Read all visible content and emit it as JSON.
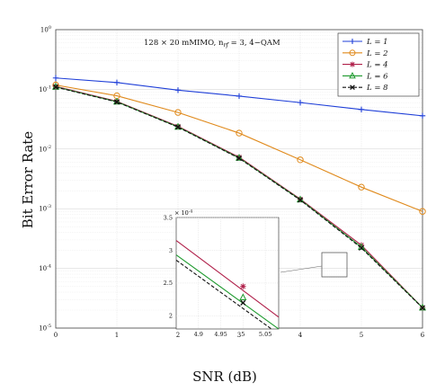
{
  "chart_data": {
    "type": "line",
    "xlabel": "SNR (dB)",
    "ylabel": "Bit Error Rate",
    "annotation": "128 × 20 mMIMO, n",
    "annotation_sub": "rf",
    "annotation_tail": " = 3, 4−QAM",
    "x": [
      0,
      1,
      2,
      3,
      4,
      5,
      6
    ],
    "xlim": [
      0,
      6
    ],
    "ylim": [
      1e-05,
      1
    ],
    "yscale": "log",
    "grid": true,
    "legend_position": "top-right",
    "xticks": [
      "0",
      "1",
      "2",
      "3",
      "4",
      "5",
      "6"
    ],
    "yticks": [
      {
        "base": "10",
        "exp": "0"
      },
      {
        "base": "10",
        "exp": "-1"
      },
      {
        "base": "10",
        "exp": "-2"
      },
      {
        "base": "10",
        "exp": "-3"
      },
      {
        "base": "10",
        "exp": "-4"
      },
      {
        "base": "10",
        "exp": "-5"
      }
    ],
    "series": [
      {
        "name": "L = 1",
        "color": "#1f3fd8",
        "marker": "plus",
        "dash": "",
        "values": [
          0.155,
          0.13,
          0.097,
          0.077,
          0.06,
          0.046,
          0.036
        ]
      },
      {
        "name": "L = 2",
        "color": "#e08a1c",
        "marker": "circle",
        "dash": "",
        "values": [
          0.118,
          0.078,
          0.041,
          0.0185,
          0.0066,
          0.0023,
          0.0009
        ]
      },
      {
        "name": "L = 4",
        "color": "#b0204a",
        "marker": "star",
        "dash": "",
        "values": [
          0.112,
          0.063,
          0.024,
          0.0073,
          0.00145,
          0.000245,
          2.2e-05
        ]
      },
      {
        "name": "L = 6",
        "color": "#1e9a2e",
        "marker": "triangle",
        "dash": "",
        "values": [
          0.11,
          0.062,
          0.0235,
          0.0071,
          0.00142,
          0.000228,
          2.2e-05
        ]
      },
      {
        "name": "L = 8",
        "color": "#111111",
        "marker": "x",
        "dash": "4,2",
        "values": [
          0.109,
          0.0615,
          0.0233,
          0.007,
          0.0014,
          0.00022,
          2.18e-05
        ]
      }
    ],
    "inset": {
      "xlim": [
        4.85,
        5.08
      ],
      "ylim": [
        1.8,
        3.5
      ],
      "exponent": "× 10",
      "exponent_power": "-4",
      "xticks": [
        "4.9",
        "4.95",
        "5",
        "5.05"
      ],
      "yticks": [
        "2",
        "2.5",
        "3",
        "3.5"
      ],
      "series": [
        {
          "name": "L = 4",
          "color": "#b0204a",
          "dash": "",
          "start": [
            4.85,
            3.15
          ],
          "end": [
            5.08,
            1.98
          ],
          "marker": "star",
          "marker_at": [
            5.0,
            2.45
          ]
        },
        {
          "name": "L = 6",
          "color": "#1e9a2e",
          "dash": "",
          "start": [
            4.85,
            2.93
          ],
          "end": [
            5.08,
            1.8
          ],
          "marker": "triangle",
          "marker_at": [
            5.0,
            2.28
          ]
        },
        {
          "name": "L = 8",
          "color": "#111111",
          "dash": "4,2",
          "start": [
            4.85,
            2.85
          ],
          "end": [
            5.08,
            1.72
          ],
          "marker": "x",
          "marker_at": [
            5.0,
            2.2
          ]
        }
      ]
    }
  }
}
